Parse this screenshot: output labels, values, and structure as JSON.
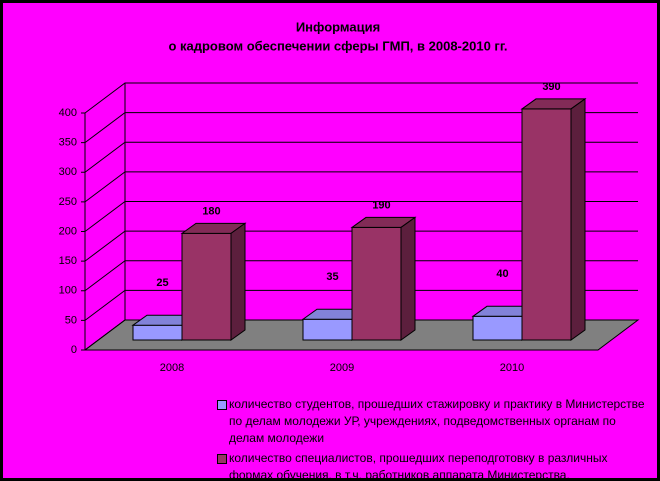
{
  "chart_data": {
    "type": "bar3d",
    "title": "Информация",
    "subtitle": "о кадровом обеспечении сферы ГМП, в 2008-2010 гг.",
    "categories": [
      "2008",
      "2009",
      "2010"
    ],
    "series": [
      {
        "name": "количество студентов, прошедших стажировку и практику в Министерстве по делам молодежи УР, учреждениях, подведомственных органам по делам молодежи",
        "color": "#9999ff",
        "values": [
          25,
          35,
          40
        ]
      },
      {
        "name": "количество специалистов, прошедших переподготовку в различных формах обучения, в т.ч. работников аппарата Министерства, государственных и муниципальных  учреждений УР",
        "color": "#993366",
        "values": [
          180,
          190,
          390
        ]
      }
    ],
    "ylim": [
      0,
      400
    ],
    "yticks": [
      0,
      50,
      100,
      150,
      200,
      250,
      300,
      350,
      400
    ],
    "grid": true
  }
}
